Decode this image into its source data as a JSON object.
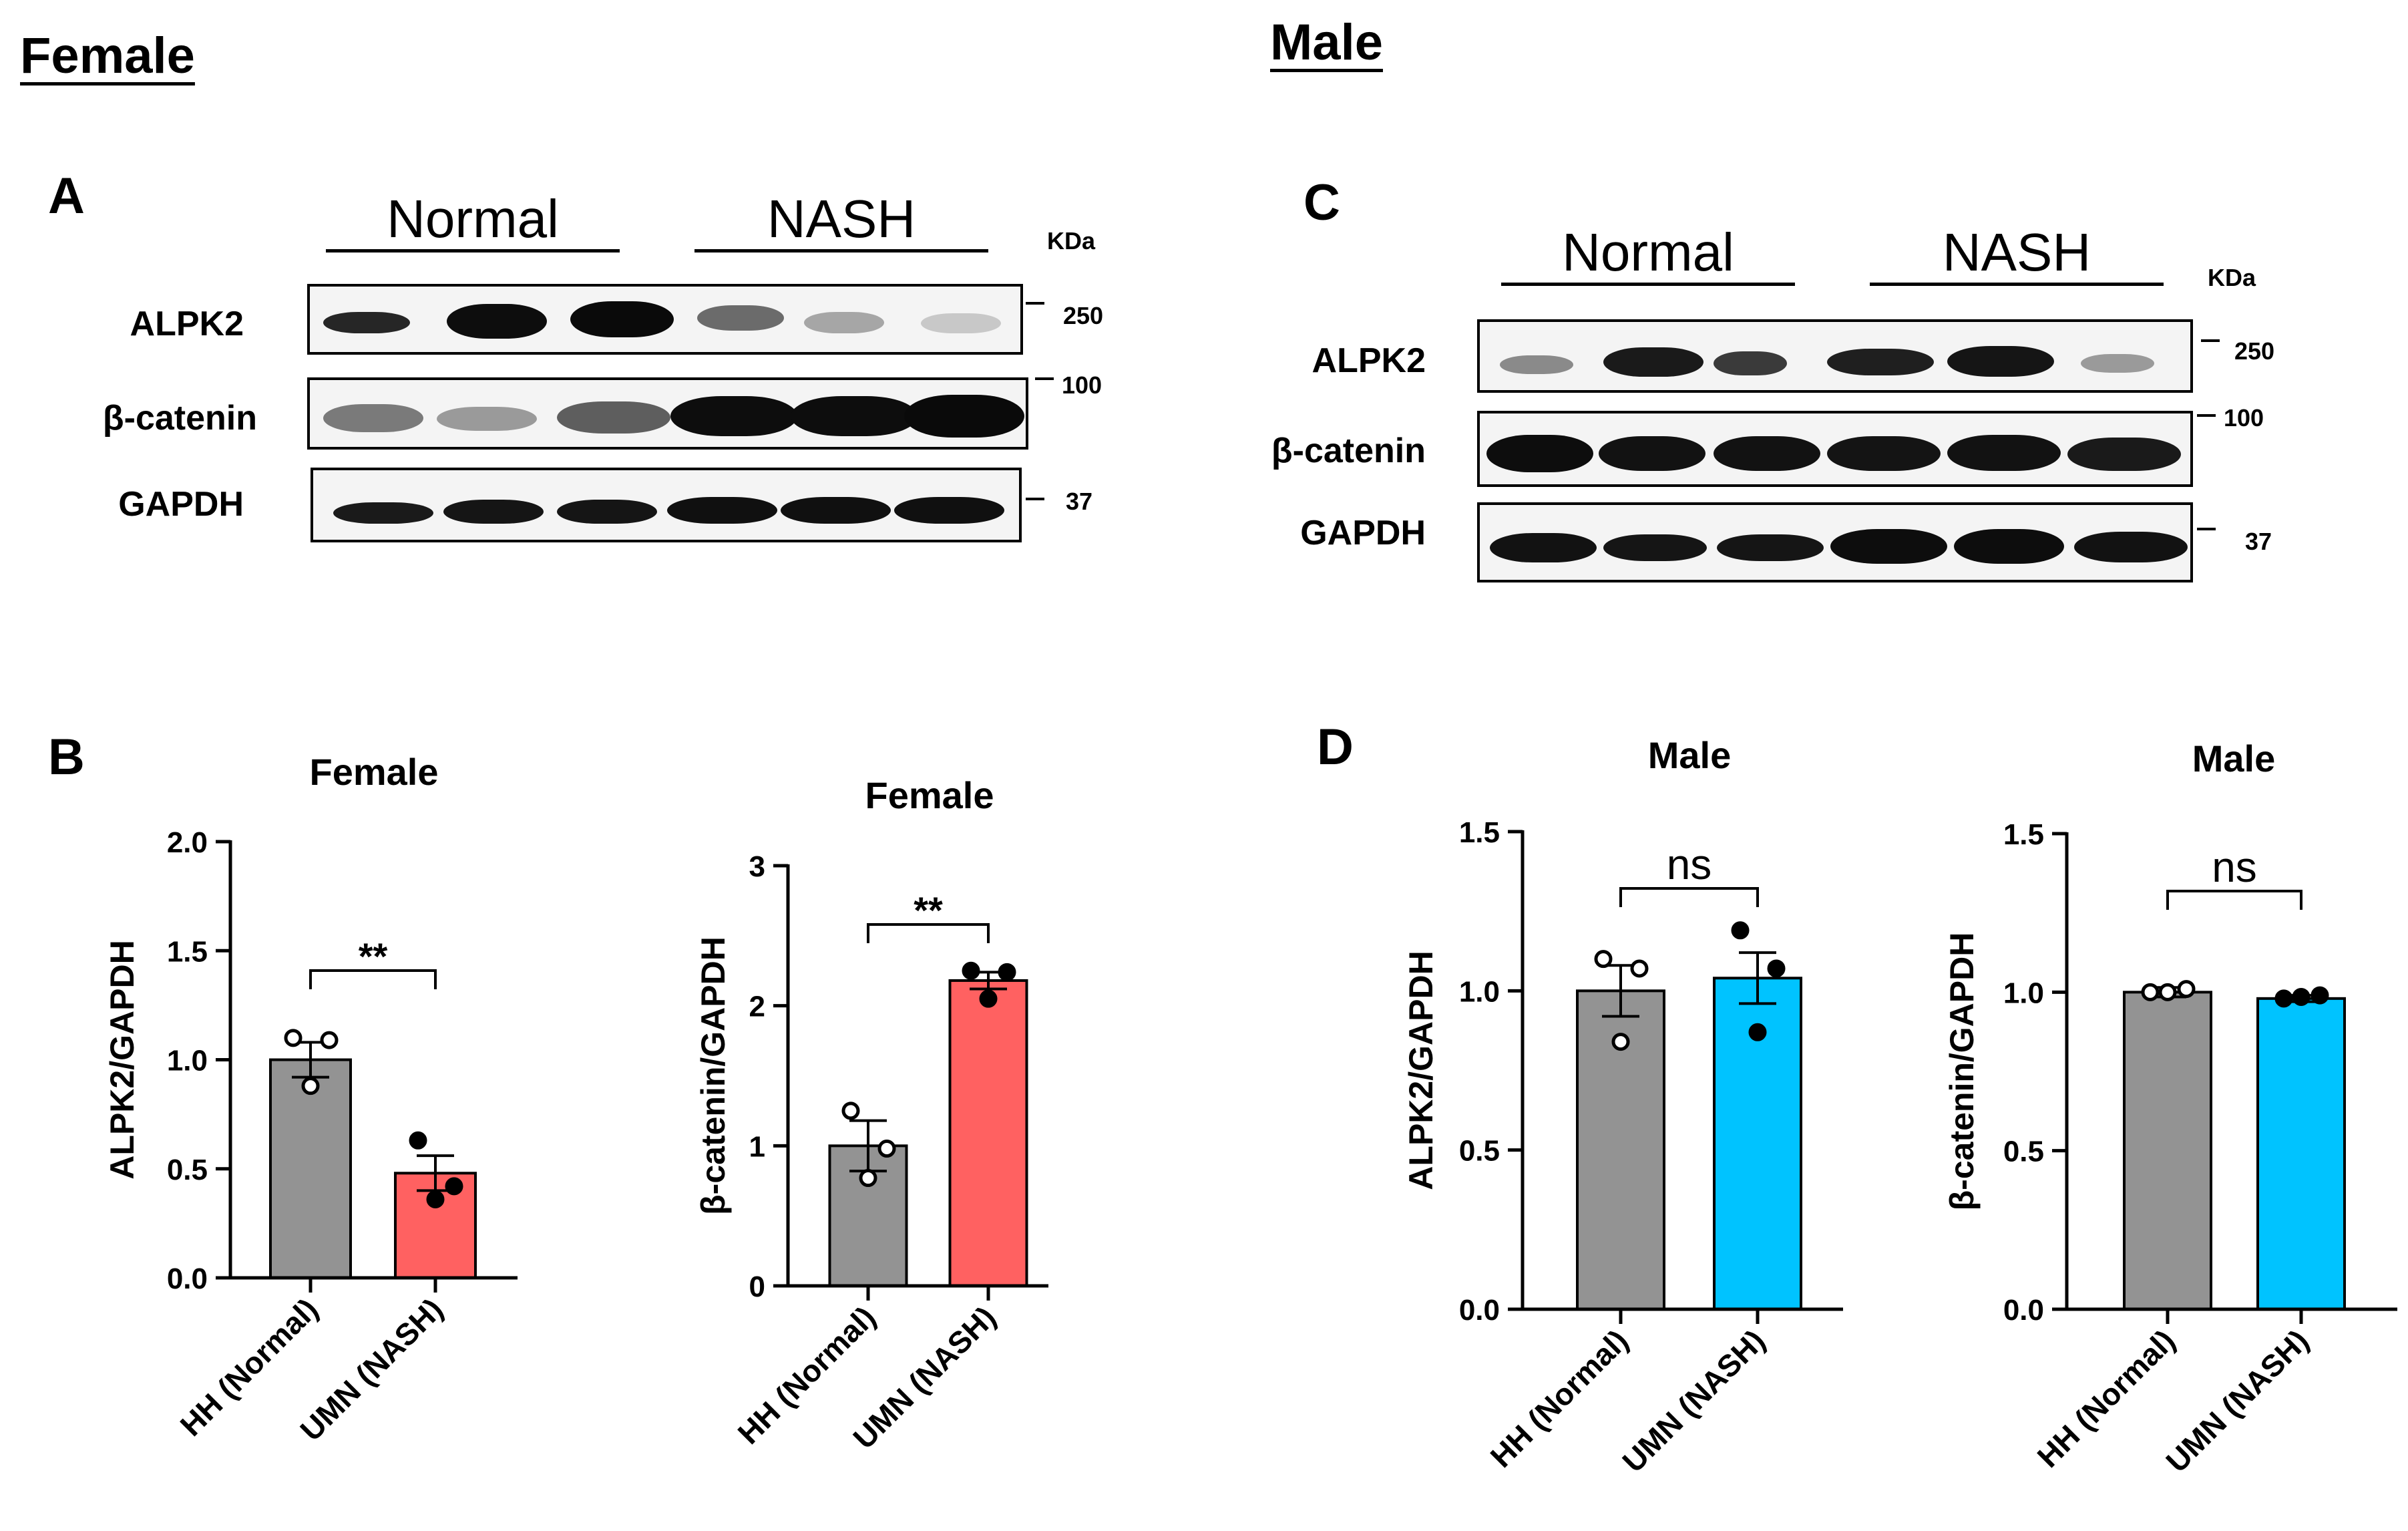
{
  "sections": {
    "female": "Female",
    "male": "Male"
  },
  "panel_letters": {
    "A": "A",
    "B": "B",
    "C": "C",
    "D": "D"
  },
  "blots": {
    "A": {
      "groups": [
        "Normal",
        "NASH"
      ],
      "unit": "KDa",
      "rows": [
        "ALPK2",
        "β-catenin",
        "GAPDH"
      ],
      "markers": [
        "250",
        "100",
        "37"
      ]
    },
    "C": {
      "groups": [
        "Normal",
        "NASH"
      ],
      "unit": "KDa",
      "rows": [
        "ALPK2",
        "β-catenin",
        "GAPDH"
      ],
      "markers": [
        "250",
        "100",
        "37"
      ]
    }
  },
  "colors": {
    "normal_bar": "#939393",
    "nash_female": "#ff6161",
    "nash_male": "#00c3ff"
  },
  "chart_data": [
    {
      "id": "B-left",
      "type": "bar",
      "title": "Female",
      "ylabel": "ALPK2/GAPDH",
      "categories": [
        "HH (Normal)",
        "UMN (NASH)"
      ],
      "values": [
        1.0,
        0.48
      ],
      "errors": [
        0.08,
        0.08
      ],
      "ylim": [
        0,
        2.0
      ],
      "yticks": [
        0.0,
        0.5,
        1.0,
        1.5,
        2.0
      ],
      "tick_labels": [
        "0.0",
        "0.5",
        "1.0",
        "1.5",
        "2.0"
      ],
      "points": [
        [
          1.1,
          1.09,
          0.88
        ],
        [
          0.63,
          0.42,
          0.36
        ]
      ],
      "significance": "**"
    },
    {
      "id": "B-right",
      "type": "bar",
      "title": "Female",
      "ylabel": "β-catenin/GAPDH",
      "categories": [
        "HH (Normal)",
        "UMN (NASH)"
      ],
      "values": [
        1.0,
        2.18
      ],
      "errors": [
        0.18,
        0.06
      ],
      "ylim": [
        0,
        3
      ],
      "yticks": [
        0,
        1,
        2,
        3
      ],
      "tick_labels": [
        "0",
        "1",
        "2",
        "3"
      ],
      "points": [
        [
          1.25,
          0.98,
          0.77
        ],
        [
          2.25,
          2.24,
          2.05
        ]
      ],
      "significance": "**"
    },
    {
      "id": "D-left",
      "type": "bar",
      "title": "Male",
      "ylabel": "ALPK2/GAPDH",
      "categories": [
        "HH (Normal)",
        "UMN (NASH)"
      ],
      "values": [
        1.0,
        1.04
      ],
      "errors": [
        0.08,
        0.08
      ],
      "ylim": [
        0,
        1.5
      ],
      "yticks": [
        0.0,
        0.5,
        1.0,
        1.5
      ],
      "tick_labels": [
        "0.0",
        "0.5",
        "1.0",
        "1.5"
      ],
      "points": [
        [
          1.1,
          1.07,
          0.84
        ],
        [
          1.19,
          1.07,
          0.87
        ]
      ],
      "significance": "ns"
    },
    {
      "id": "D-right",
      "type": "bar",
      "title": "Male",
      "ylabel": "β-catenin/GAPDH",
      "categories": [
        "HH (Normal)",
        "UMN (NASH)"
      ],
      "values": [
        1.0,
        0.98
      ],
      "errors": [
        0.015,
        0.01
      ],
      "ylim": [
        0,
        1.5
      ],
      "yticks": [
        0.0,
        0.5,
        1.0,
        1.5
      ],
      "tick_labels": [
        "0.0",
        "0.5",
        "1.0",
        "1.5"
      ],
      "points": [
        [
          1.0,
          1.01,
          1.0
        ],
        [
          0.98,
          0.99,
          0.985
        ]
      ],
      "significance": "ns"
    }
  ]
}
